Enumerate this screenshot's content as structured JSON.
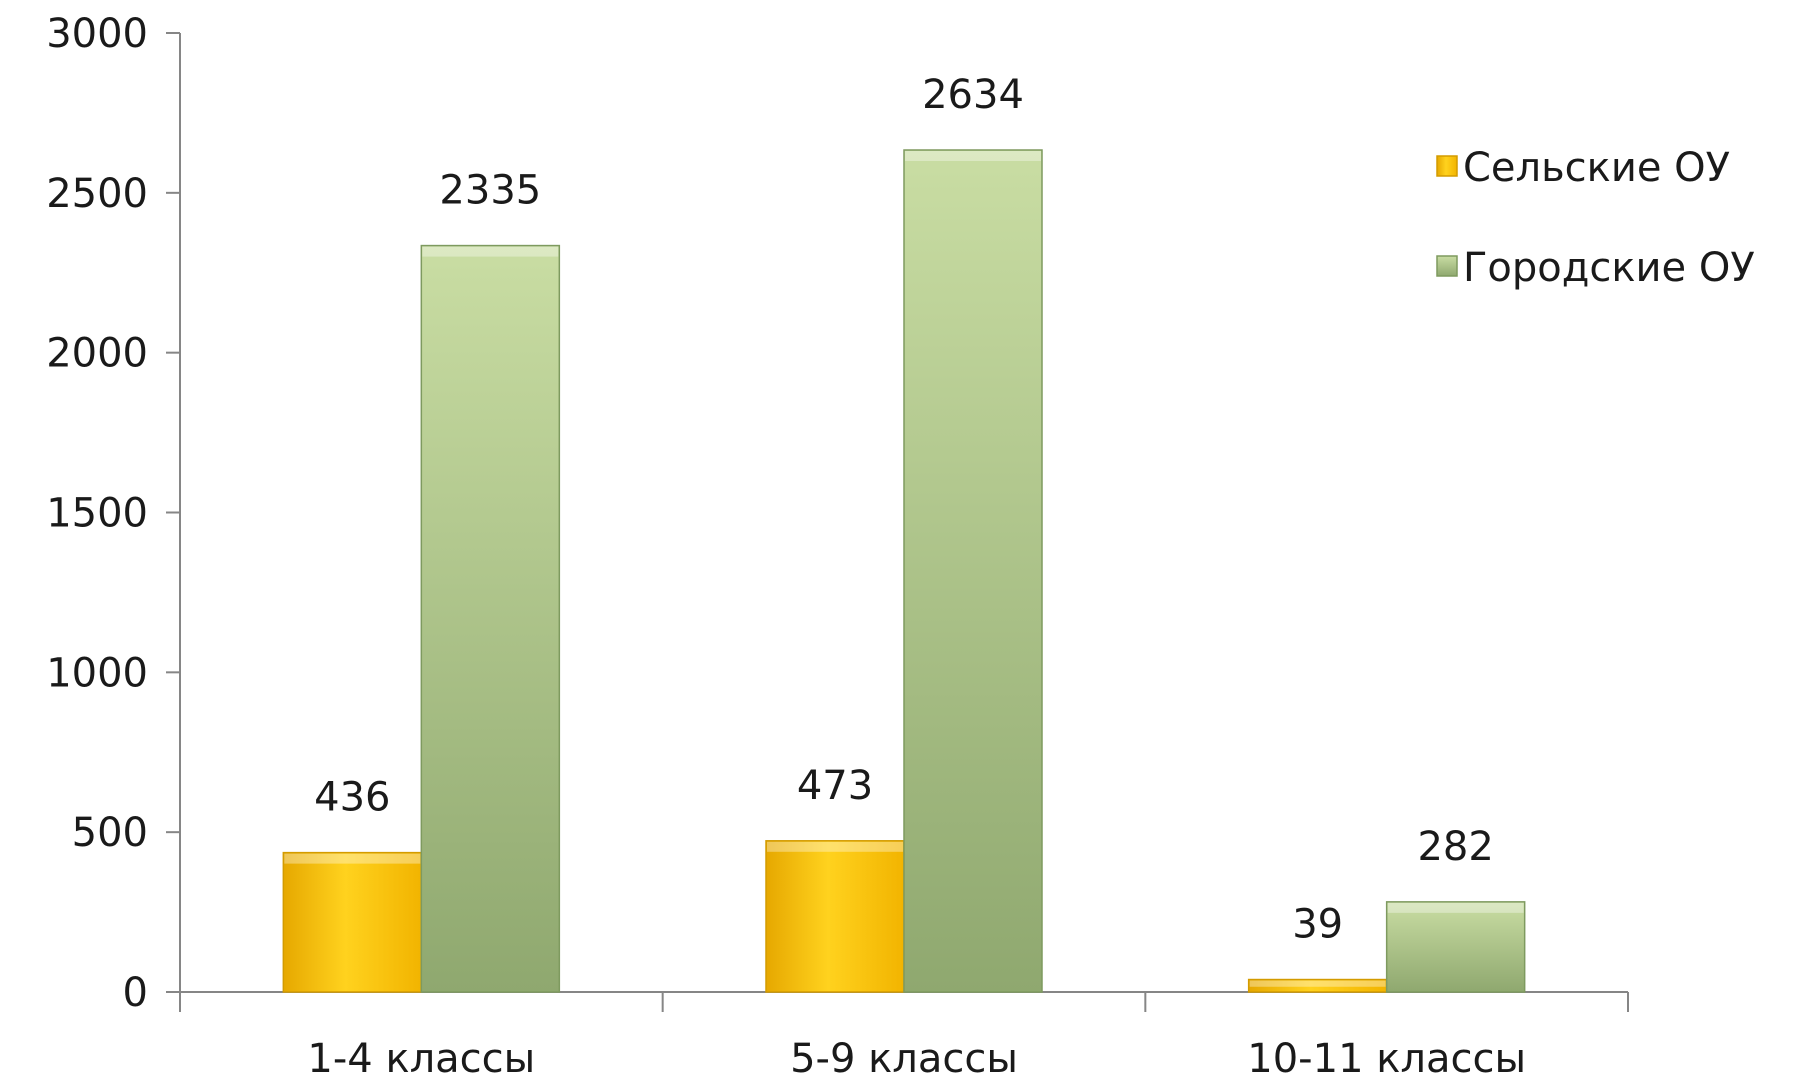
{
  "chart_data": {
    "type": "bar",
    "categories": [
      "1-4 классы",
      "5-9 классы",
      "10-11 классы"
    ],
    "series": [
      {
        "name": "Сельские ОУ",
        "values": [
          436,
          473,
          39
        ],
        "color": "#FFC400"
      },
      {
        "name": "Городские ОУ",
        "values": [
          2335,
          2634,
          282
        ],
        "color": "#9BB97A"
      }
    ],
    "ylim": [
      0,
      3000
    ],
    "yticks": [
      "0",
      "500",
      "1000",
      "1500",
      "2000",
      "2500",
      "3000"
    ],
    "data_labels": [
      [
        "436",
        "473",
        "39"
      ],
      [
        "2335",
        "2634",
        "282"
      ]
    ],
    "legend_position": "right",
    "grid": false
  }
}
